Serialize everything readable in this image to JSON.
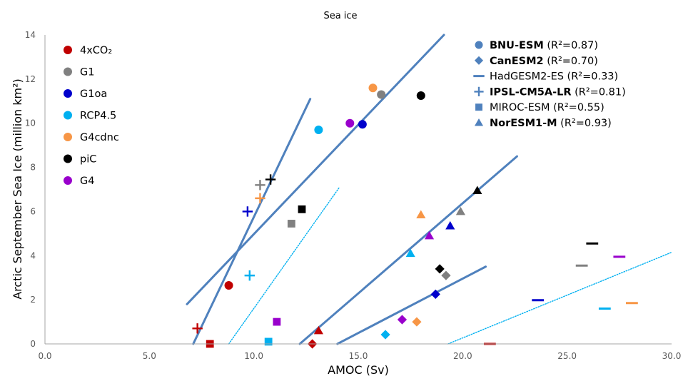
{
  "chart_data": {
    "type": "scatter",
    "title": "Sea ice",
    "xlabel": "AMOC (Sv)",
    "ylabel": "Arctic September Sea Ice (million km²)",
    "xlim": [
      0,
      30
    ],
    "ylim": [
      0,
      14
    ],
    "x_ticks": [
      "0.0",
      "5.0",
      "10.0",
      "15.0",
      "20.0",
      "25.0",
      "30.0"
    ],
    "y_ticks": [
      "0",
      "2",
      "4",
      "6",
      "8",
      "10",
      "12",
      "14"
    ],
    "grid": false,
    "experiments": [
      {
        "name": "4xCO₂",
        "color": "#c00000"
      },
      {
        "name": "G1",
        "color": "#808080"
      },
      {
        "name": "G1oa",
        "color": "#0000cc"
      },
      {
        "name": "RCP4.5",
        "color": "#00b0f0"
      },
      {
        "name": "G4cdnc",
        "color": "#f79646"
      },
      {
        "name": "piC",
        "color": "#000000"
      },
      {
        "name": "G4",
        "color": "#9900cc"
      }
    ],
    "models": [
      {
        "name": "BNU-ESM",
        "r2": "(R²=0.87)",
        "marker": "circle",
        "bold": true
      },
      {
        "name": "CanESM2",
        "r2": "(R²=0.70)",
        "marker": "diamond",
        "bold": true
      },
      {
        "name": "HadGESM2-ES",
        "r2": "(R²=0.33)",
        "marker": "dash",
        "bold": false
      },
      {
        "name": "IPSL-CM5A-LR",
        "r2": "(R²=0.81)",
        "marker": "plus",
        "bold": true
      },
      {
        "name": "MIROC-ESM",
        "r2": "(R²=0.55)",
        "marker": "square",
        "bold": false
      },
      {
        "name": "NorESM1-M",
        "r2": "(R²=0.93)",
        "marker": "triangle",
        "bold": true
      }
    ],
    "model_marker_color": "#4f81bd",
    "regression_color": "#4f81bd",
    "points": [
      {
        "model": "BNU-ESM",
        "experiment": "4xCO₂",
        "x": 8.8,
        "y": 2.65
      },
      {
        "model": "BNU-ESM",
        "experiment": "G1",
        "x": 16.1,
        "y": 11.3
      },
      {
        "model": "BNU-ESM",
        "experiment": "G1oa",
        "x": 15.2,
        "y": 9.95
      },
      {
        "model": "BNU-ESM",
        "experiment": "RCP4.5",
        "x": 13.1,
        "y": 9.7
      },
      {
        "model": "BNU-ESM",
        "experiment": "G4cdnc",
        "x": 15.7,
        "y": 11.6
      },
      {
        "model": "BNU-ESM",
        "experiment": "piC",
        "x": 18.0,
        "y": 11.25
      },
      {
        "model": "BNU-ESM",
        "experiment": "G4",
        "x": 14.6,
        "y": 10.0
      },
      {
        "model": "CanESM2",
        "experiment": "4xCO₂",
        "x": 12.8,
        "y": 0.0
      },
      {
        "model": "CanESM2",
        "experiment": "G1",
        "x": 19.2,
        "y": 3.1
      },
      {
        "model": "CanESM2",
        "experiment": "G1oa",
        "x": 18.7,
        "y": 2.25
      },
      {
        "model": "CanESM2",
        "experiment": "RCP4.5",
        "x": 16.3,
        "y": 0.42
      },
      {
        "model": "CanESM2",
        "experiment": "G4cdnc",
        "x": 17.8,
        "y": 1.0
      },
      {
        "model": "CanESM2",
        "experiment": "piC",
        "x": 18.9,
        "y": 3.4
      },
      {
        "model": "CanESM2",
        "experiment": "G4",
        "x": 17.1,
        "y": 1.1
      },
      {
        "model": "HadGESM2-ES",
        "experiment": "4xCO₂",
        "x": 21.3,
        "y": 0.0
      },
      {
        "model": "HadGESM2-ES",
        "experiment": "G1",
        "x": 25.7,
        "y": 3.55
      },
      {
        "model": "HadGESM2-ES",
        "experiment": "G1oa",
        "x": 23.6,
        "y": 1.98
      },
      {
        "model": "HadGESM2-ES",
        "experiment": "RCP4.5",
        "x": 26.8,
        "y": 1.6
      },
      {
        "model": "HadGESM2-ES",
        "experiment": "G4cdnc",
        "x": 28.1,
        "y": 1.85
      },
      {
        "model": "HadGESM2-ES",
        "experiment": "piC",
        "x": 26.2,
        "y": 4.55
      },
      {
        "model": "HadGESM2-ES",
        "experiment": "G4",
        "x": 27.5,
        "y": 3.95
      },
      {
        "model": "IPSL-CM5A-LR",
        "experiment": "4xCO₂",
        "x": 7.3,
        "y": 0.7
      },
      {
        "model": "IPSL-CM5A-LR",
        "experiment": "G1",
        "x": 10.3,
        "y": 7.2
      },
      {
        "model": "IPSL-CM5A-LR",
        "experiment": "G1oa",
        "x": 9.7,
        "y": 6.0
      },
      {
        "model": "IPSL-CM5A-LR",
        "experiment": "RCP4.5",
        "x": 9.8,
        "y": 3.1
      },
      {
        "model": "IPSL-CM5A-LR",
        "experiment": "G4cdnc",
        "x": 10.3,
        "y": 6.6
      },
      {
        "model": "IPSL-CM5A-LR",
        "experiment": "piC",
        "x": 10.8,
        "y": 7.45
      },
      {
        "model": "MIROC-ESM",
        "experiment": "4xCO₂",
        "x": 7.9,
        "y": 0.0
      },
      {
        "model": "MIROC-ESM",
        "experiment": "G1",
        "x": 11.8,
        "y": 5.45
      },
      {
        "model": "MIROC-ESM",
        "experiment": "RCP4.5",
        "x": 10.7,
        "y": 0.1
      },
      {
        "model": "MIROC-ESM",
        "experiment": "piC",
        "x": 12.3,
        "y": 6.1
      },
      {
        "model": "MIROC-ESM",
        "experiment": "G4",
        "x": 11.1,
        "y": 1.0
      },
      {
        "model": "NorESM1-M",
        "experiment": "4xCO₂",
        "x": 13.1,
        "y": 0.6
      },
      {
        "model": "NorESM1-M",
        "experiment": "G1",
        "x": 19.9,
        "y": 6.0
      },
      {
        "model": "NorESM1-M",
        "experiment": "G1oa",
        "x": 19.4,
        "y": 5.35
      },
      {
        "model": "NorESM1-M",
        "experiment": "RCP4.5",
        "x": 17.5,
        "y": 4.1
      },
      {
        "model": "NorESM1-M",
        "experiment": "G4cdnc",
        "x": 18.0,
        "y": 5.85
      },
      {
        "model": "NorESM1-M",
        "experiment": "piC",
        "x": 20.7,
        "y": 6.95
      },
      {
        "model": "NorESM1-M",
        "experiment": "G4",
        "x": 18.4,
        "y": 4.9
      }
    ],
    "regression_lines": [
      {
        "model": "BNU-ESM",
        "style": "solid",
        "x": [
          6.8,
          19.1
        ],
        "y": [
          1.8,
          14.0
        ]
      },
      {
        "model": "CanESM2",
        "style": "solid",
        "x": [
          14.0,
          21.1
        ],
        "y": [
          0.0,
          3.5
        ]
      },
      {
        "model": "HadGESM2-ES",
        "style": "dotted",
        "x": [
          19.3,
          30.0
        ],
        "y": [
          0.0,
          4.15
        ]
      },
      {
        "model": "IPSL-CM5A-LR",
        "style": "solid",
        "x": [
          7.1,
          12.7
        ],
        "y": [
          0.0,
          11.1
        ]
      },
      {
        "model": "MIROC-ESM",
        "style": "dotted",
        "x": [
          8.8,
          14.1
        ],
        "y": [
          0.0,
          7.1
        ]
      },
      {
        "model": "NorESM1-M",
        "style": "solid",
        "x": [
          12.2,
          22.6
        ],
        "y": [
          0.0,
          8.5
        ]
      }
    ]
  }
}
